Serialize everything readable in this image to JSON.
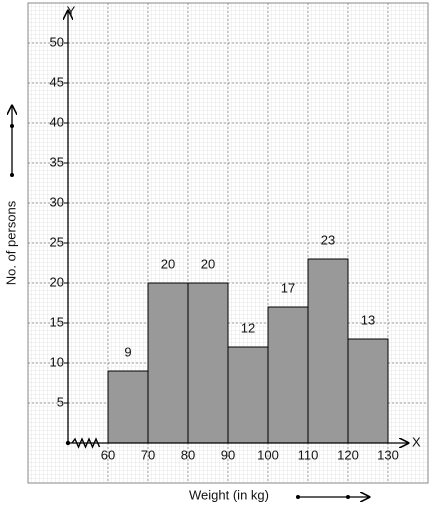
{
  "chart_data": {
    "type": "histogram",
    "x_label": "Weight (in kg)",
    "y_label": "No. of persons",
    "x_axis_name": "X",
    "y_axis_name": "Y",
    "bins": [
      60,
      70,
      80,
      90,
      100,
      110,
      120,
      130
    ],
    "counts": [
      9,
      20,
      20,
      12,
      17,
      23,
      13
    ],
    "color": "#999999",
    "xlim": [
      50,
      135
    ],
    "xticks": [
      60,
      70,
      80,
      90,
      100,
      110,
      120,
      130
    ],
    "ylim": [
      0,
      54
    ],
    "yticks": [
      5,
      10,
      15,
      20,
      25,
      30,
      35,
      40,
      45,
      50
    ],
    "grid": true
  }
}
